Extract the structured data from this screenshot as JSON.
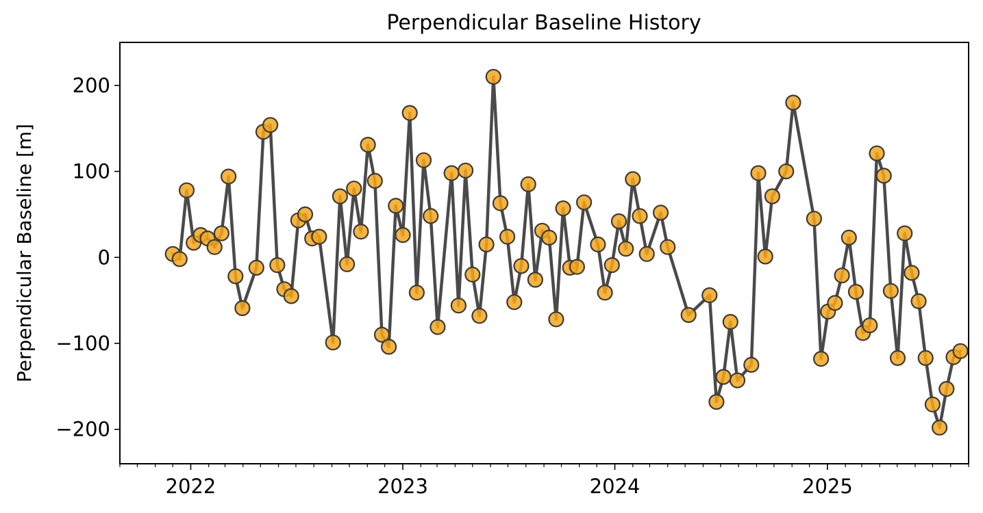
{
  "chart_data": {
    "type": "line",
    "title": "Perpendicular Baseline History",
    "xlabel": "",
    "ylabel": "Perpendicular Baseline [m]",
    "x_ticks": [
      "2022",
      "2023",
      "2024",
      "2025"
    ],
    "y_ticks": [
      200,
      100,
      0,
      -100,
      -200
    ],
    "xlim": [
      "2021-09-01",
      "2025-09-01"
    ],
    "ylim": [
      -240,
      250
    ],
    "grid": false,
    "series": [
      {
        "points": [
          [
            "2021-12-01",
            4
          ],
          [
            "2021-12-13",
            -2
          ],
          [
            "2021-12-25",
            78
          ],
          [
            "2022-01-06",
            17
          ],
          [
            "2022-01-18",
            26
          ],
          [
            "2022-01-30",
            22
          ],
          [
            "2022-02-11",
            12
          ],
          [
            "2022-02-23",
            28
          ],
          [
            "2022-03-07",
            94
          ],
          [
            "2022-03-19",
            -22
          ],
          [
            "2022-03-31",
            -59
          ],
          [
            "2022-04-24",
            -12
          ],
          [
            "2022-05-06",
            146
          ],
          [
            "2022-05-18",
            154
          ],
          [
            "2022-05-30",
            -9
          ],
          [
            "2022-06-11",
            -37
          ],
          [
            "2022-06-23",
            -45
          ],
          [
            "2022-07-05",
            43
          ],
          [
            "2022-07-17",
            50
          ],
          [
            "2022-07-29",
            22
          ],
          [
            "2022-08-10",
            24
          ],
          [
            "2022-09-03",
            -99
          ],
          [
            "2022-09-15",
            71
          ],
          [
            "2022-09-27",
            -8
          ],
          [
            "2022-10-09",
            80
          ],
          [
            "2022-10-21",
            30
          ],
          [
            "2022-11-02",
            131
          ],
          [
            "2022-11-14",
            89
          ],
          [
            "2022-11-26",
            -90
          ],
          [
            "2022-12-08",
            -104
          ],
          [
            "2022-12-20",
            60
          ],
          [
            "2023-01-01",
            26
          ],
          [
            "2023-01-13",
            168
          ],
          [
            "2023-01-25",
            -41
          ],
          [
            "2023-02-06",
            113
          ],
          [
            "2023-02-18",
            48
          ],
          [
            "2023-03-02",
            -81
          ],
          [
            "2023-03-26",
            98
          ],
          [
            "2023-04-07",
            -56
          ],
          [
            "2023-04-19",
            101
          ],
          [
            "2023-05-01",
            -20
          ],
          [
            "2023-05-13",
            -68
          ],
          [
            "2023-05-25",
            15
          ],
          [
            "2023-06-06",
            210
          ],
          [
            "2023-06-18",
            63
          ],
          [
            "2023-06-30",
            24
          ],
          [
            "2023-07-12",
            -52
          ],
          [
            "2023-07-24",
            -10
          ],
          [
            "2023-08-05",
            85
          ],
          [
            "2023-08-17",
            -26
          ],
          [
            "2023-08-29",
            31
          ],
          [
            "2023-09-10",
            23
          ],
          [
            "2023-09-22",
            -72
          ],
          [
            "2023-10-04",
            57
          ],
          [
            "2023-10-16",
            -12
          ],
          [
            "2023-10-28",
            -11
          ],
          [
            "2023-11-09",
            64
          ],
          [
            "2023-12-03",
            15
          ],
          [
            "2023-12-15",
            -41
          ],
          [
            "2023-12-27",
            -9
          ],
          [
            "2024-01-08",
            42
          ],
          [
            "2024-01-20",
            10
          ],
          [
            "2024-02-01",
            91
          ],
          [
            "2024-02-13",
            48
          ],
          [
            "2024-02-25",
            4
          ],
          [
            "2024-03-20",
            52
          ],
          [
            "2024-04-01",
            12
          ],
          [
            "2024-05-07",
            -67
          ],
          [
            "2024-06-12",
            -44
          ],
          [
            "2024-06-24",
            -168
          ],
          [
            "2024-07-06",
            -139
          ],
          [
            "2024-07-18",
            -75
          ],
          [
            "2024-07-30",
            -143
          ],
          [
            "2024-08-23",
            -125
          ],
          [
            "2024-09-04",
            98
          ],
          [
            "2024-09-16",
            1
          ],
          [
            "2024-09-28",
            71
          ],
          [
            "2024-10-22",
            100
          ],
          [
            "2024-11-03",
            180
          ],
          [
            "2024-12-09",
            45
          ],
          [
            "2024-12-21",
            -118
          ],
          [
            "2025-01-02",
            -63
          ],
          [
            "2025-01-14",
            -53
          ],
          [
            "2025-01-26",
            -21
          ],
          [
            "2025-02-07",
            23
          ],
          [
            "2025-02-19",
            -40
          ],
          [
            "2025-03-03",
            -88
          ],
          [
            "2025-03-15",
            -79
          ],
          [
            "2025-03-27",
            121
          ],
          [
            "2025-04-08",
            95
          ],
          [
            "2025-04-20",
            -39
          ],
          [
            "2025-05-02",
            -117
          ],
          [
            "2025-05-14",
            28
          ],
          [
            "2025-05-26",
            -18
          ],
          [
            "2025-06-07",
            -51
          ],
          [
            "2025-06-19",
            -117
          ],
          [
            "2025-07-01",
            -171
          ],
          [
            "2025-07-13",
            -198
          ],
          [
            "2025-07-25",
            -153
          ],
          [
            "2025-08-06",
            -116
          ],
          [
            "2025-08-18",
            -109
          ]
        ],
        "line_color": "#4a4a4a",
        "marker_color": "#f5a71a",
        "marker_edge_color": "#3a3a3a"
      }
    ]
  }
}
